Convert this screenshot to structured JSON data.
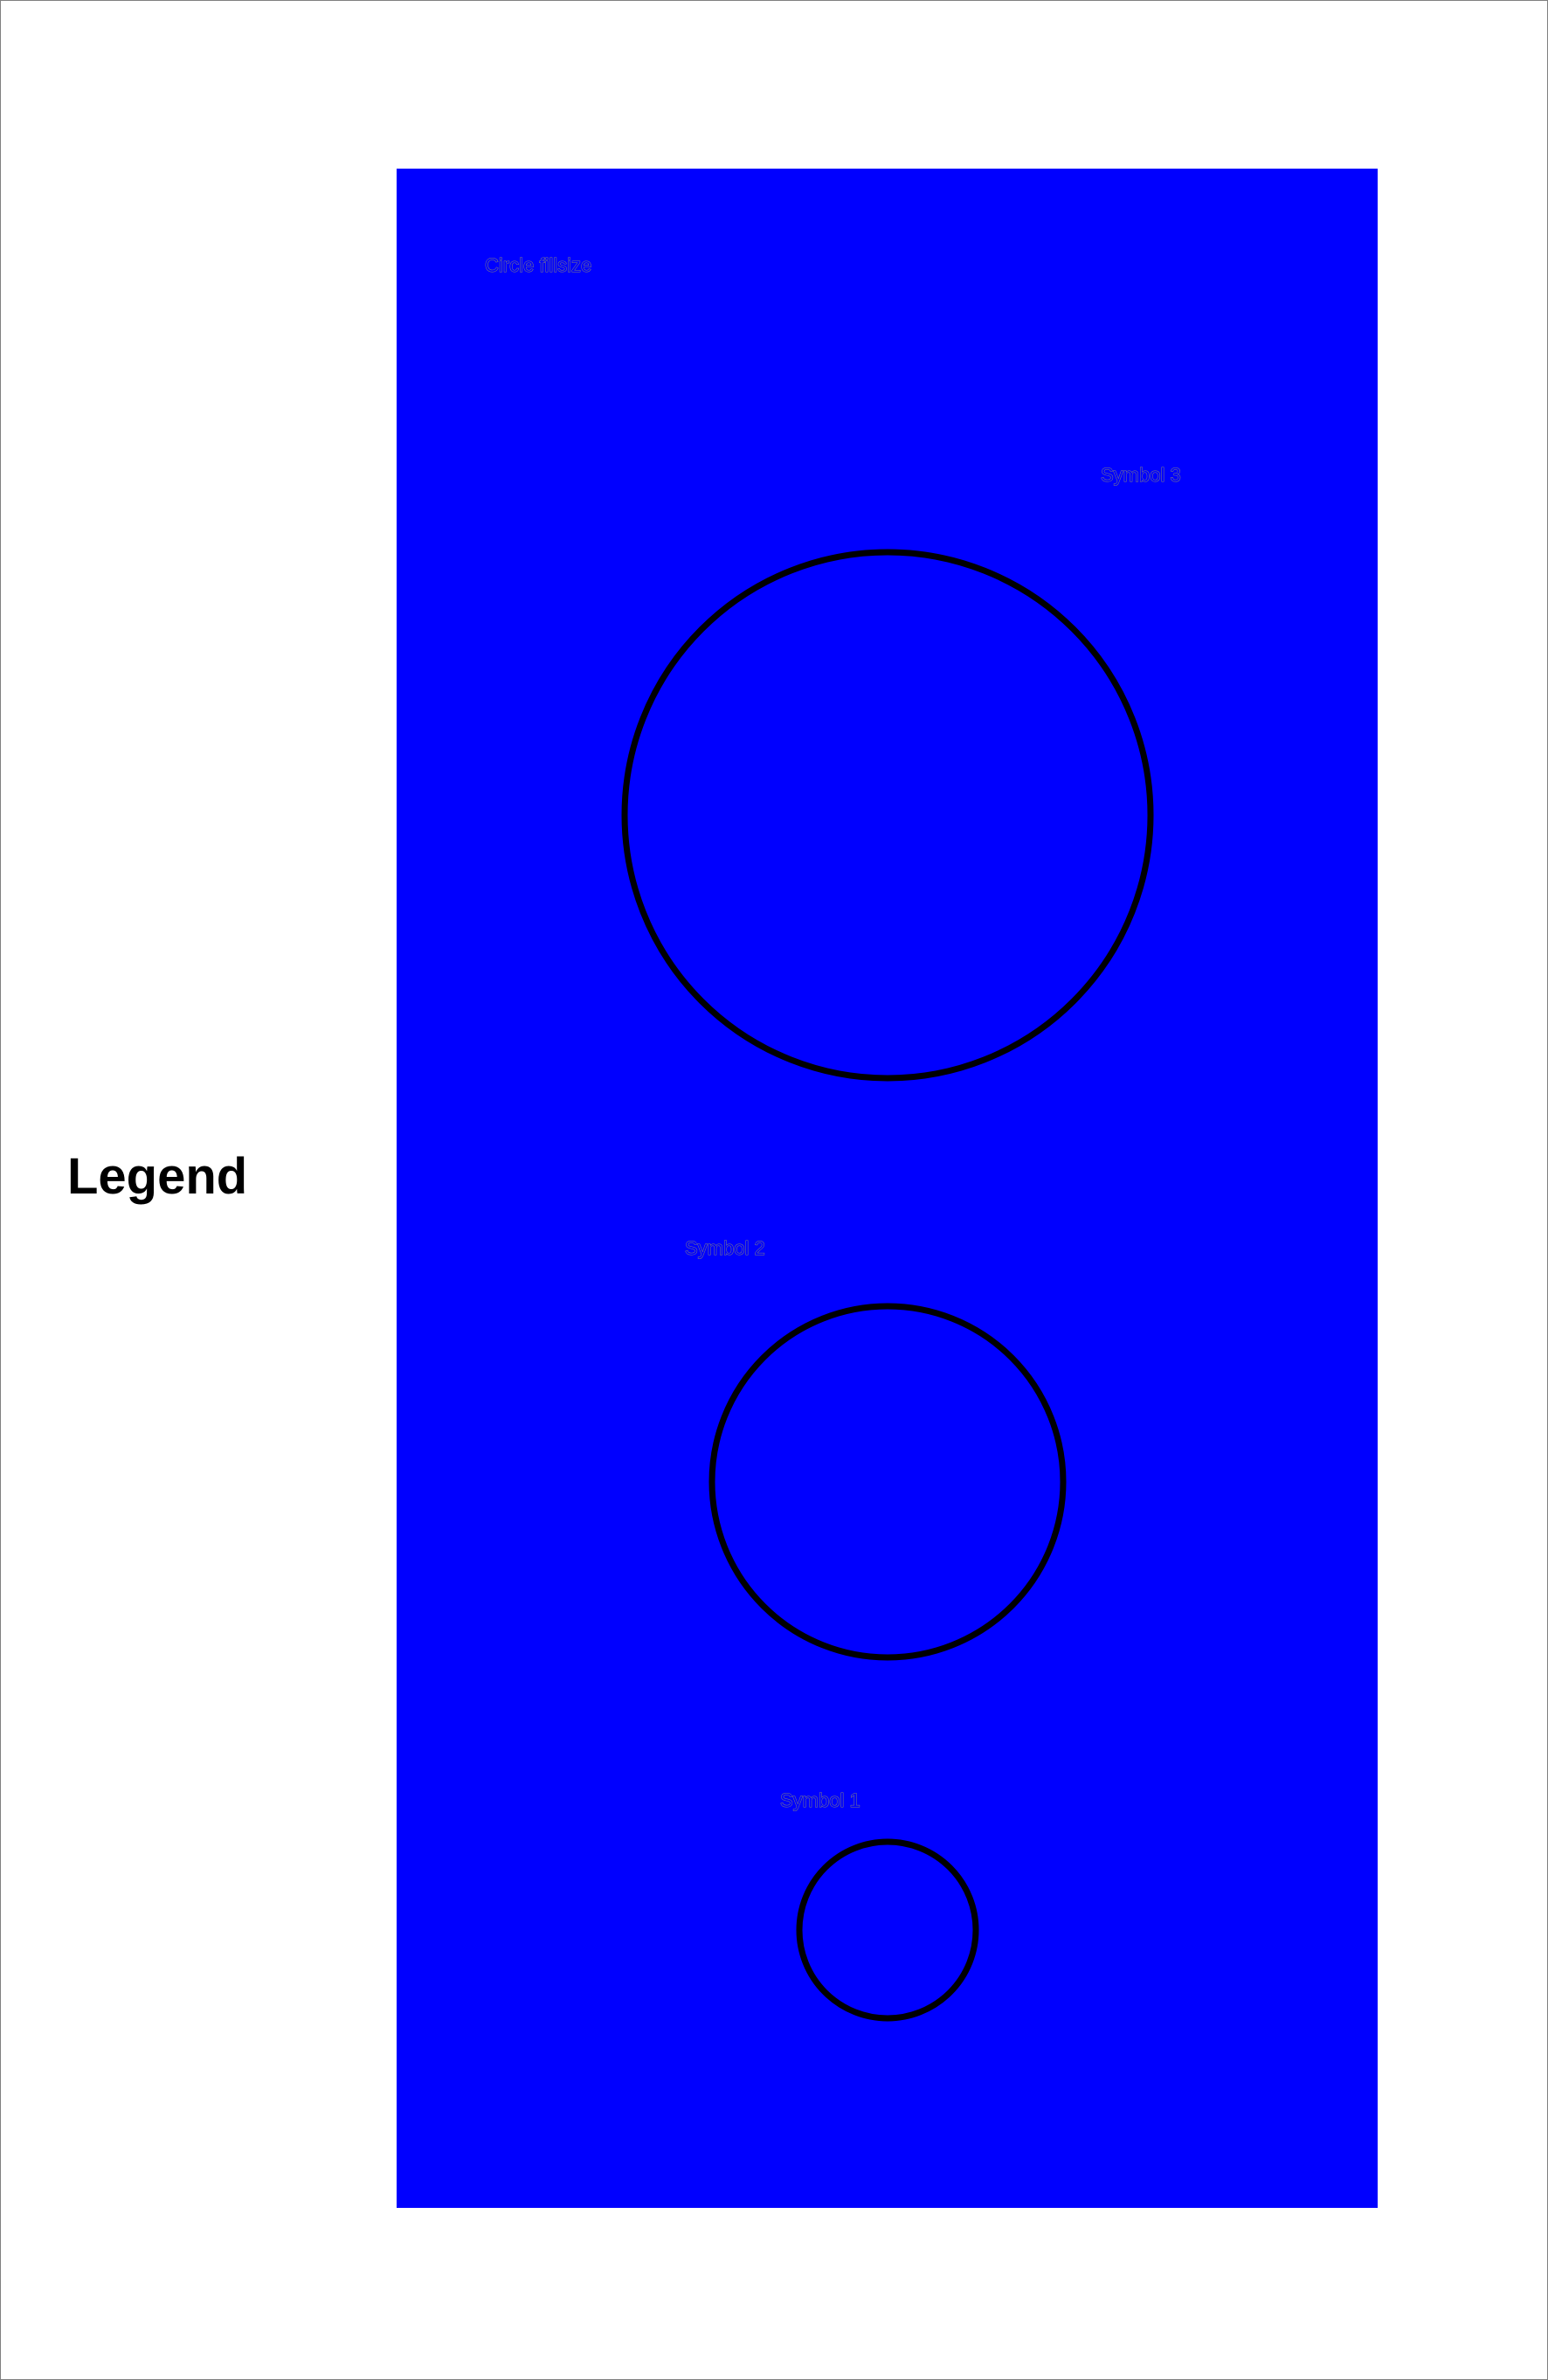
{
  "legend": {
    "heading": "Legend",
    "title": "Circle fillsize",
    "background_color": "#0000ff",
    "circle_stroke_color": "#000000",
    "symbols": [
      {
        "label": "Symbol 3",
        "size_rank": 3
      },
      {
        "label": "Symbol 2",
        "size_rank": 2
      },
      {
        "label": "Symbol 1",
        "size_rank": 1
      }
    ]
  }
}
